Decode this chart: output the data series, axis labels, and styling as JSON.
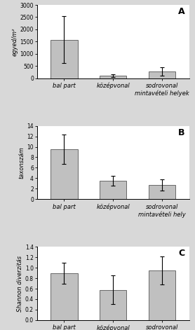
{
  "panels": [
    {
      "label": "A",
      "ylabel": "egyed/m²",
      "ylim": [
        0,
        3000
      ],
      "yticks": [
        0,
        500,
        1000,
        1500,
        2000,
        2500,
        3000
      ],
      "bar_values": [
        1580,
        100,
        280
      ],
      "bar_errors": [
        950,
        60,
        170
      ],
      "categories": [
        "bal part",
        "középvonal",
        "sodrovonal\nmintavételi helyek"
      ]
    },
    {
      "label": "B",
      "ylabel": "taxonszám",
      "ylim": [
        0,
        14
      ],
      "yticks": [
        0,
        2,
        4,
        6,
        8,
        10,
        12,
        14
      ],
      "bar_values": [
        9.5,
        3.5,
        2.7
      ],
      "bar_errors": [
        2.8,
        0.9,
        1.1
      ],
      "categories": [
        "bal part",
        "középvonal",
        "sodrovonal\nmintavételi hely"
      ]
    },
    {
      "label": "C",
      "ylabel": "Shannon diverzitás",
      "ylim": [
        0,
        1.4
      ],
      "yticks": [
        0,
        0.2,
        0.4,
        0.6,
        0.8,
        1.0,
        1.2,
        1.4
      ],
      "bar_values": [
        0.9,
        0.58,
        0.95
      ],
      "bar_errors": [
        0.2,
        0.28,
        0.27
      ],
      "categories": [
        "bal part",
        "középvonal",
        "sodrovonal\nmintavételi hely"
      ]
    }
  ],
  "bar_color": "#c0c0c0",
  "bar_edgecolor": "#555555",
  "bar_width": 0.55,
  "figsize": [
    2.78,
    4.71
  ],
  "dpi": 100,
  "background_color": "#d8d8d8",
  "panel_bg": "#ffffff"
}
